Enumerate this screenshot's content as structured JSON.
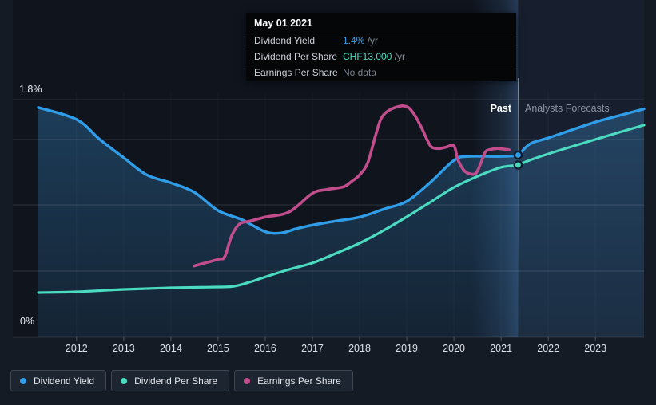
{
  "tooltip": {
    "date": "May 01 2021",
    "rows": [
      {
        "label": "Dividend Yield",
        "value": "1.4%",
        "suffix": " /yr",
        "color": "#2f9de8"
      },
      {
        "label": "Dividend Per Share",
        "value": "CHF13.000",
        "suffix": " /yr",
        "color": "#4adbc1"
      },
      {
        "label": "Earnings Per Share",
        "value": "No data",
        "suffix": "",
        "color": "#7b828d"
      }
    ]
  },
  "labels": {
    "past": "Past",
    "forecasts": "Analysts Forecasts",
    "y_top": "1.8%",
    "y_bottom": "0%"
  },
  "legend": [
    {
      "label": "Dividend Yield",
      "color": "#2f9de8"
    },
    {
      "label": "Dividend Per Share",
      "color": "#4adbc1"
    },
    {
      "label": "Earnings Per Share",
      "color": "#c24d8c"
    }
  ],
  "chart_data": {
    "type": "line",
    "title": "Dividend history and forecast",
    "x_domain": [
      2011.19,
      2024.03
    ],
    "x_years": [
      2012,
      2013,
      2014,
      2015,
      2016,
      2017,
      2018,
      2019,
      2020,
      2021,
      2022,
      2023
    ],
    "y_domains": {
      "pct": [
        0,
        1.8
      ],
      "chf": [
        0,
        17.93
      ],
      "pct_indexed": [
        0,
        1.8
      ]
    },
    "y_axis_labels": {
      "top": "1.8%",
      "bottom": "0%"
    },
    "grid": true,
    "legend_position": "bottom-left",
    "divider_year": 2021.36,
    "divider_date": "May 01 2021",
    "highlight_band_years": [
      2020.37,
      2021.36
    ],
    "note": "Earnings Per Share has no visible scale on the chart; its values are chart-relative display units on the 0-1.8 axis.",
    "series": [
      {
        "name": "Dividend Yield",
        "axis": "pct",
        "units": "%",
        "color": "#2f9de8",
        "past": [
          [
            2011.19,
            1.74
          ],
          [
            2012,
            1.65
          ],
          [
            2012.49,
            1.5
          ],
          [
            2013,
            1.36
          ],
          [
            2013.49,
            1.23
          ],
          [
            2014,
            1.17
          ],
          [
            2014.49,
            1.1
          ],
          [
            2015,
            0.96
          ],
          [
            2015.51,
            0.89
          ],
          [
            2016,
            0.8
          ],
          [
            2016.34,
            0.79
          ],
          [
            2016.64,
            0.82
          ],
          [
            2017,
            0.85
          ],
          [
            2017.49,
            0.88
          ],
          [
            2018,
            0.91
          ],
          [
            2018.51,
            0.97
          ],
          [
            2019,
            1.03
          ],
          [
            2019.49,
            1.17
          ],
          [
            2020,
            1.34
          ],
          [
            2020.29,
            1.37
          ],
          [
            2021,
            1.37
          ],
          [
            2021.36,
            1.38
          ]
        ],
        "forecast": [
          [
            2021.36,
            1.38
          ],
          [
            2021.47,
            1.42
          ],
          [
            2021.64,
            1.47
          ],
          [
            2022,
            1.51
          ],
          [
            2022.49,
            1.57
          ],
          [
            2023,
            1.63
          ],
          [
            2023.51,
            1.68
          ],
          [
            2024.03,
            1.73
          ]
        ]
      },
      {
        "name": "Dividend Per Share",
        "axis": "chf",
        "units": "CHF",
        "color": "#4adbc1",
        "past": [
          [
            2011.19,
            3.37
          ],
          [
            2012,
            3.43
          ],
          [
            2013,
            3.61
          ],
          [
            2014,
            3.73
          ],
          [
            2015,
            3.79
          ],
          [
            2015.34,
            3.85
          ],
          [
            2015.66,
            4.15
          ],
          [
            2016,
            4.55
          ],
          [
            2016.51,
            5.12
          ],
          [
            2017,
            5.6
          ],
          [
            2017.49,
            6.32
          ],
          [
            2018,
            7.1
          ],
          [
            2018.51,
            8.06
          ],
          [
            2019,
            9.09
          ],
          [
            2019.49,
            10.17
          ],
          [
            2020,
            11.31
          ],
          [
            2020.51,
            12.16
          ],
          [
            2021,
            12.82
          ],
          [
            2021.36,
            13.0
          ]
        ],
        "forecast": [
          [
            2021.36,
            13.0
          ],
          [
            2021.56,
            13.3
          ],
          [
            2022,
            13.84
          ],
          [
            2022.49,
            14.38
          ],
          [
            2023,
            14.93
          ],
          [
            2023.51,
            15.47
          ],
          [
            2024.03,
            16.01
          ]
        ]
      },
      {
        "name": "Earnings Per Share",
        "axis": "pct_indexed",
        "units": "",
        "color": "#c24d8c",
        "past": [
          [
            2014.49,
            0.54
          ],
          [
            2015,
            0.59
          ],
          [
            2015.14,
            0.61
          ],
          [
            2015.29,
            0.77
          ],
          [
            2015.46,
            0.86
          ],
          [
            2015.68,
            0.88
          ],
          [
            2016,
            0.91
          ],
          [
            2016.51,
            0.95
          ],
          [
            2017,
            1.09
          ],
          [
            2017.32,
            1.12
          ],
          [
            2017.66,
            1.14
          ],
          [
            2017.83,
            1.18
          ],
          [
            2018,
            1.23
          ],
          [
            2018.17,
            1.32
          ],
          [
            2018.34,
            1.53
          ],
          [
            2018.46,
            1.66
          ],
          [
            2018.63,
            1.72
          ],
          [
            2018.85,
            1.75
          ],
          [
            2018.97,
            1.75
          ],
          [
            2019.07,
            1.73
          ],
          [
            2019.19,
            1.67
          ],
          [
            2019.31,
            1.59
          ],
          [
            2019.44,
            1.49
          ],
          [
            2019.53,
            1.44
          ],
          [
            2019.69,
            1.43
          ],
          [
            2019.83,
            1.44
          ],
          [
            2020,
            1.45
          ],
          [
            2020.08,
            1.35
          ],
          [
            2020.2,
            1.27
          ],
          [
            2020.32,
            1.24
          ],
          [
            2020.46,
            1.24
          ],
          [
            2020.56,
            1.31
          ],
          [
            2020.66,
            1.4
          ],
          [
            2020.75,
            1.42
          ],
          [
            2020.92,
            1.43
          ],
          [
            2021.17,
            1.42
          ]
        ],
        "forecast": []
      }
    ],
    "markers": [
      {
        "series": "Dividend Yield",
        "year": 2021.36,
        "value": 1.38,
        "axis": "pct",
        "color": "#2f9de8"
      },
      {
        "series": "Dividend Per Share",
        "year": 2021.36,
        "value": 13.0,
        "axis": "chf",
        "color": "#4adbc1"
      }
    ]
  }
}
